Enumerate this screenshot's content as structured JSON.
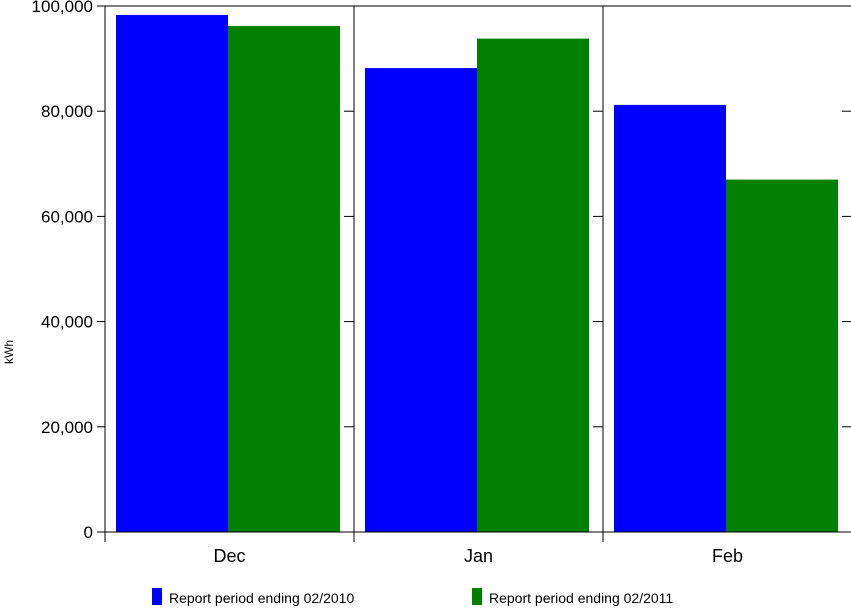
{
  "chart_data": {
    "type": "bar",
    "categories": [
      "Dec",
      "Jan",
      "Feb"
    ],
    "series": [
      {
        "name": "Report period ending 02/2010",
        "values": [
          98300,
          88200,
          81200
        ],
        "color": "#0000ff"
      },
      {
        "name": "Report period ending 02/2011",
        "values": [
          96200,
          93800,
          67000
        ],
        "color": "#008000"
      }
    ],
    "title": "",
    "xlabel": "",
    "ylabel": "kWh",
    "ylim": [
      0,
      100000
    ],
    "yticks": [
      0,
      20000,
      40000,
      60000,
      80000,
      100000
    ],
    "ytick_labels": [
      "0",
      "20,000",
      "40,000",
      "60,000",
      "80,000",
      "100,000"
    ],
    "grid": false,
    "legend": "bottom"
  }
}
